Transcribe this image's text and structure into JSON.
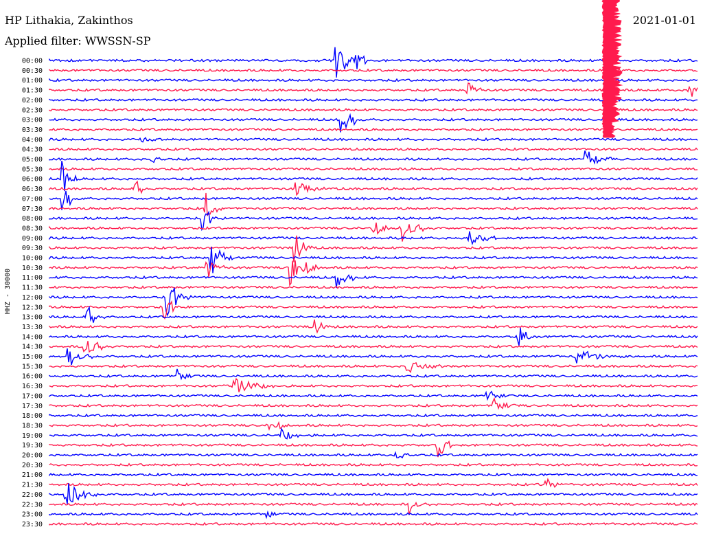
{
  "header": {
    "station": "HP Lithakia, Zakinthos",
    "filter": "Applied filter: WWSSN-SP",
    "date": "2021-01-01"
  },
  "chart_data": {
    "type": "line",
    "ylabel": "HHZ - 30000",
    "row_labels": [
      "00:00",
      "00:30",
      "01:00",
      "01:30",
      "02:00",
      "02:30",
      "03:00",
      "03:30",
      "04:00",
      "04:30",
      "05:00",
      "05:30",
      "06:00",
      "06:30",
      "07:00",
      "07:30",
      "08:00",
      "08:30",
      "09:00",
      "09:30",
      "10:00",
      "10:30",
      "11:00",
      "11:30",
      "12:00",
      "12:30",
      "13:00",
      "13:30",
      "14:00",
      "14:30",
      "15:00",
      "15:30",
      "16:00",
      "16:30",
      "17:00",
      "17:30",
      "18:00",
      "18:30",
      "19:00",
      "19:30",
      "20:00",
      "20:30",
      "21:00",
      "21:30",
      "22:00",
      "22:30",
      "23:00",
      "23:30"
    ],
    "colors": [
      "#0000ff",
      "#ff1a4d"
    ],
    "grid": false
  }
}
